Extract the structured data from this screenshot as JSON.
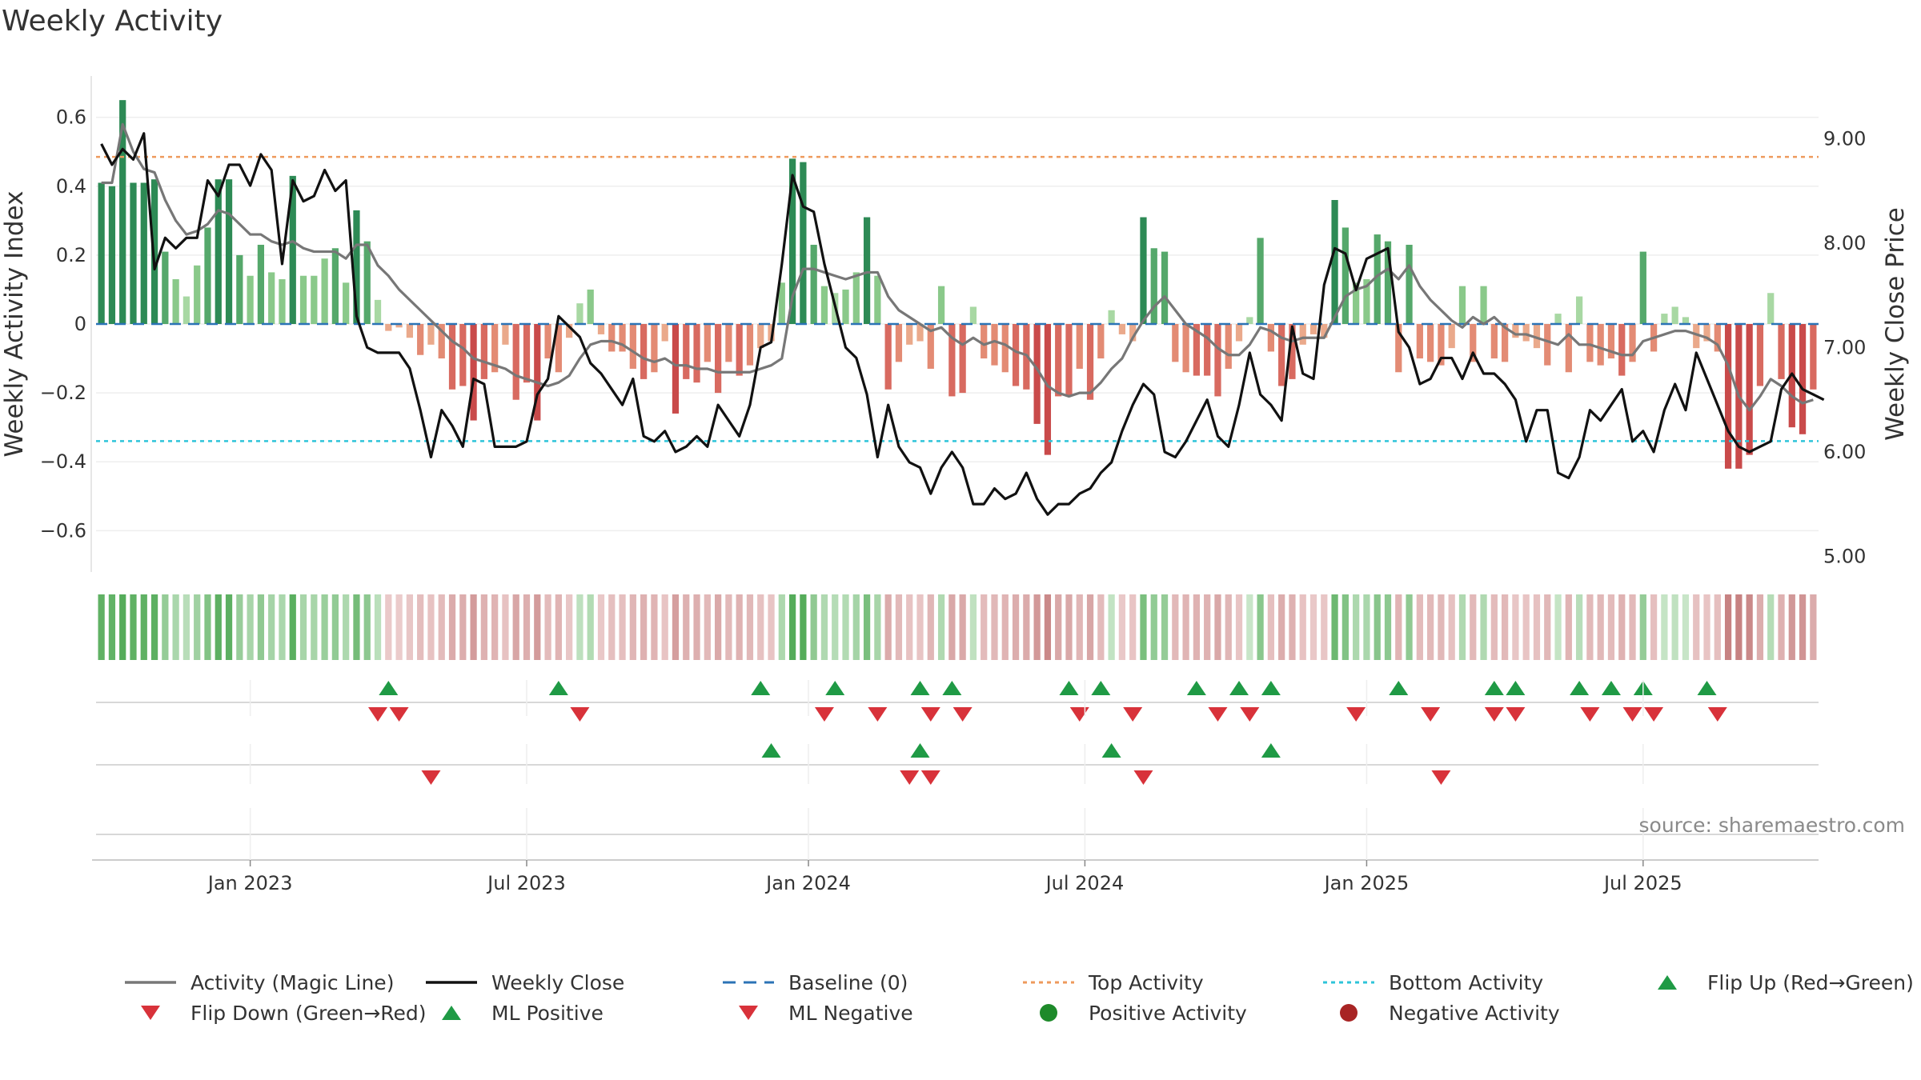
{
  "chart_data": {
    "type": "bar",
    "title": "Weekly Activity",
    "ylabel_left": "Weekly Activity Index",
    "ylabel_right": "Weekly Close Price",
    "source": "source: sharemaestro.com",
    "ylim_left": [
      -0.72,
      0.72
    ],
    "ylim_right": [
      4.85,
      9.6
    ],
    "left_ticks": [
      {
        "v": 0.6,
        "label": "0.6"
      },
      {
        "v": 0.4,
        "label": "0.4"
      },
      {
        "v": 0.2,
        "label": "0.2"
      },
      {
        "v": 0,
        "label": "0"
      },
      {
        "v": -0.2,
        "label": "−0.2"
      },
      {
        "v": -0.4,
        "label": "−0.4"
      },
      {
        "v": -0.6,
        "label": "−0.6"
      }
    ],
    "right_ticks": [
      {
        "v": 9,
        "label": "9.00"
      },
      {
        "v": 8,
        "label": "8.00"
      },
      {
        "v": 7,
        "label": "7.00"
      },
      {
        "v": 6,
        "label": "6.00"
      },
      {
        "v": 5,
        "label": "5.00"
      }
    ],
    "x_ticks": [
      {
        "week": 14.5,
        "label": "Jan 2023"
      },
      {
        "week": 40.5,
        "label": "Jul 2023"
      },
      {
        "week": 67,
        "label": "Jan 2024"
      },
      {
        "week": 93,
        "label": "Jul 2024"
      },
      {
        "week": 119.5,
        "label": "Jan 2025"
      },
      {
        "week": 145.5,
        "label": "Jul 2025"
      }
    ],
    "top_activity": 0.485,
    "bottom_activity": -0.34,
    "activity": [
      0.41,
      0.4,
      0.65,
      0.41,
      0.41,
      0.42,
      0.21,
      0.13,
      0.08,
      0.17,
      0.28,
      0.42,
      0.42,
      0.2,
      0.14,
      0.23,
      0.15,
      0.13,
      0.43,
      0.14,
      0.14,
      0.19,
      0.22,
      0.12,
      0.33,
      0.24,
      0.07,
      -0.02,
      -0.01,
      -0.04,
      -0.09,
      -0.06,
      -0.1,
      -0.19,
      -0.18,
      -0.28,
      -0.16,
      -0.14,
      -0.06,
      -0.22,
      -0.17,
      -0.28,
      -0.1,
      -0.14,
      -0.04,
      0.06,
      0.1,
      -0.03,
      -0.08,
      -0.08,
      -0.13,
      -0.16,
      -0.14,
      -0.05,
      -0.26,
      -0.16,
      -0.17,
      -0.11,
      -0.2,
      -0.11,
      -0.15,
      -0.12,
      -0.07,
      -0.05,
      0.12,
      0.48,
      0.47,
      0.23,
      0.11,
      0.09,
      0.1,
      0.15,
      0.31,
      0.14,
      -0.19,
      -0.11,
      -0.06,
      -0.05,
      -0.13,
      0.11,
      -0.21,
      -0.2,
      0.05,
      -0.1,
      -0.12,
      -0.14,
      -0.18,
      -0.19,
      -0.29,
      -0.38,
      -0.21,
      -0.21,
      -0.13,
      -0.22,
      -0.1,
      0.04,
      -0.03,
      -0.05,
      0.31,
      0.22,
      0.21,
      -0.11,
      -0.14,
      -0.15,
      -0.15,
      -0.21,
      -0.13,
      -0.05,
      0.02,
      0.25,
      -0.08,
      -0.18,
      -0.16,
      -0.06,
      -0.03,
      -0.04,
      0.36,
      0.28,
      0.12,
      0.13,
      0.26,
      0.24,
      -0.14,
      0.23,
      -0.1,
      -0.11,
      -0.12,
      -0.07,
      0.11,
      -0.11,
      0.11,
      -0.1,
      -0.11,
      -0.04,
      -0.05,
      -0.07,
      -0.12,
      0.03,
      -0.14,
      0.08,
      -0.11,
      -0.12,
      -0.1,
      -0.15,
      -0.11,
      0.21,
      -0.08,
      0.03,
      0.05,
      0.02,
      -0.07,
      -0.05,
      -0.08,
      -0.42,
      -0.42,
      -0.38,
      -0.18,
      0.09,
      -0.16,
      -0.3,
      -0.32,
      -0.19
    ],
    "magic_line": [
      0.41,
      0.41,
      0.58,
      0.5,
      0.45,
      0.44,
      0.36,
      0.3,
      0.26,
      0.27,
      0.29,
      0.33,
      0.32,
      0.29,
      0.26,
      0.26,
      0.24,
      0.23,
      0.24,
      0.22,
      0.21,
      0.21,
      0.21,
      0.19,
      0.23,
      0.23,
      0.17,
      0.14,
      0.1,
      0.07,
      0.04,
      0.01,
      -0.02,
      -0.05,
      -0.07,
      -0.1,
      -0.11,
      -0.12,
      -0.13,
      -0.15,
      -0.16,
      -0.17,
      -0.18,
      -0.17,
      -0.15,
      -0.1,
      -0.06,
      -0.05,
      -0.05,
      -0.06,
      -0.08,
      -0.1,
      -0.11,
      -0.1,
      -0.12,
      -0.12,
      -0.13,
      -0.13,
      -0.14,
      -0.14,
      -0.14,
      -0.14,
      -0.13,
      -0.12,
      -0.1,
      0.08,
      0.16,
      0.16,
      0.15,
      0.14,
      0.13,
      0.14,
      0.15,
      0.15,
      0.08,
      0.04,
      0.02,
      0.0,
      -0.02,
      -0.01,
      -0.04,
      -0.06,
      -0.04,
      -0.06,
      -0.05,
      -0.06,
      -0.08,
      -0.09,
      -0.13,
      -0.18,
      -0.2,
      -0.21,
      -0.2,
      -0.2,
      -0.17,
      -0.13,
      -0.1,
      -0.04,
      0.01,
      0.05,
      0.08,
      0.04,
      0.0,
      -0.02,
      -0.04,
      -0.07,
      -0.09,
      -0.09,
      -0.06,
      -0.01,
      -0.02,
      -0.04,
      -0.05,
      -0.04,
      -0.04,
      -0.04,
      0.02,
      0.08,
      0.1,
      0.11,
      0.14,
      0.16,
      0.13,
      0.17,
      0.11,
      0.07,
      0.04,
      0.01,
      -0.01,
      0.02,
      0.0,
      0.02,
      -0.01,
      -0.03,
      -0.03,
      -0.04,
      -0.05,
      -0.06,
      -0.03,
      -0.06,
      -0.06,
      -0.07,
      -0.08,
      -0.09,
      -0.09,
      -0.05,
      -0.04,
      -0.03,
      -0.02,
      -0.02,
      -0.03,
      -0.04,
      -0.06,
      -0.12,
      -0.21,
      -0.25,
      -0.21,
      -0.16,
      -0.18,
      -0.21,
      -0.23,
      -0.22
    ],
    "weekly_close": [
      8.95,
      8.75,
      8.9,
      8.8,
      9.05,
      7.75,
      8.05,
      7.95,
      8.05,
      8.05,
      8.6,
      8.45,
      8.75,
      8.75,
      8.55,
      8.85,
      8.7,
      7.8,
      8.6,
      8.4,
      8.45,
      8.7,
      8.5,
      8.6,
      7.3,
      7.0,
      6.95,
      6.95,
      6.95,
      6.8,
      6.4,
      5.95,
      6.4,
      6.25,
      6.05,
      6.7,
      6.65,
      6.05,
      6.05,
      6.05,
      6.1,
      6.55,
      6.7,
      7.3,
      7.2,
      7.1,
      6.85,
      6.75,
      6.6,
      6.45,
      6.7,
      6.15,
      6.1,
      6.2,
      6.0,
      6.05,
      6.15,
      6.05,
      6.45,
      6.3,
      6.15,
      6.45,
      7.0,
      7.05,
      7.8,
      8.65,
      8.35,
      8.3,
      7.8,
      7.4,
      7.0,
      6.9,
      6.55,
      5.95,
      6.45,
      6.05,
      5.9,
      5.85,
      5.6,
      5.85,
      6.0,
      5.85,
      5.5,
      5.5,
      5.65,
      5.55,
      5.6,
      5.8,
      5.55,
      5.4,
      5.5,
      5.5,
      5.6,
      5.65,
      5.8,
      5.9,
      6.2,
      6.45,
      6.65,
      6.55,
      6.0,
      5.95,
      6.1,
      6.3,
      6.5,
      6.15,
      6.05,
      6.45,
      6.95,
      6.55,
      6.45,
      6.3,
      7.2,
      6.75,
      6.7,
      7.6,
      7.95,
      7.9,
      7.55,
      7.85,
      7.9,
      7.95,
      7.15,
      7.0,
      6.65,
      6.7,
      6.9,
      6.9,
      6.7,
      6.95,
      6.75,
      6.75,
      6.65,
      6.5,
      6.1,
      6.4,
      6.4,
      5.8,
      5.75,
      5.95,
      6.4,
      6.3,
      6.45,
      6.6,
      6.1,
      6.2,
      6.0,
      6.4,
      6.65,
      6.4,
      6.95,
      6.7,
      6.45,
      6.2,
      6.05,
      6.0,
      6.05,
      6.1,
      6.6,
      6.75,
      6.6,
      6.55,
      6.5
    ],
    "flip_up_weeks": [
      27,
      43,
      62,
      69,
      77,
      80,
      91,
      94,
      103,
      107,
      110,
      122,
      131,
      133,
      139,
      142,
      145,
      151
    ],
    "flip_down_weeks": [
      26,
      28,
      45,
      68,
      73,
      78,
      81,
      92,
      97,
      105,
      108,
      118,
      125,
      131,
      133,
      140,
      144,
      146,
      152
    ],
    "ml_positive_weeks": [
      63,
      77,
      95,
      110
    ],
    "ml_negative_weeks": [
      31,
      76,
      78,
      98,
      126
    ],
    "legend": [
      {
        "label": "Activity (Magic Line)",
        "marker": "line",
        "color": "#777777"
      },
      {
        "label": "Weekly Close",
        "marker": "line",
        "color": "#111111"
      },
      {
        "label": "Baseline (0)",
        "marker": "dash",
        "color": "#2b73b6"
      },
      {
        "label": "Top Activity",
        "marker": "dot-line",
        "color": "#ee9a5c"
      },
      {
        "label": "Bottom Activity",
        "marker": "dot-line",
        "color": "#2ec4d9"
      },
      {
        "label": "Flip Up (Red→Green)",
        "marker": "triangle-up",
        "color": "#1f9a45"
      },
      {
        "label": "Flip Down (Green→Red)",
        "marker": "triangle-down",
        "color": "#d8323a"
      },
      {
        "label": "ML Positive",
        "marker": "triangle-up",
        "color": "#1f9a45"
      },
      {
        "label": "ML Negative",
        "marker": "triangle-down",
        "color": "#d8323a"
      },
      {
        "label": "Positive Activity",
        "marker": "circle",
        "color": "#1e8a2a"
      },
      {
        "label": "Negative Activity",
        "marker": "circle",
        "color": "#a82424"
      }
    ]
  }
}
